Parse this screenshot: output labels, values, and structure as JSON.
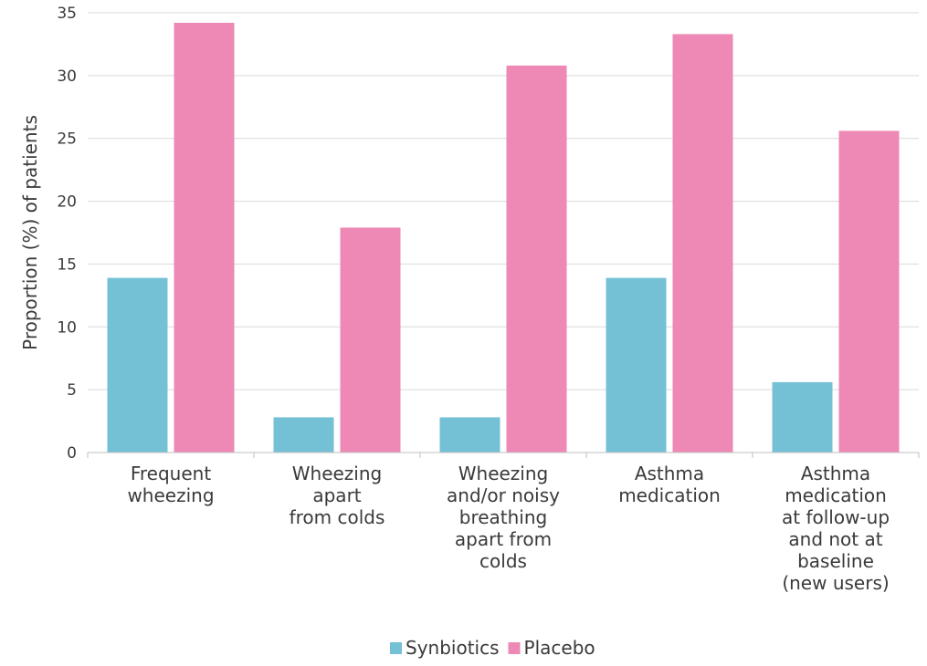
{
  "chart_data": {
    "type": "bar",
    "title": "",
    "xlabel": "",
    "ylabel": "Proportion (%) of patients",
    "ylim": [
      0,
      35
    ],
    "yticks": [
      0,
      5,
      10,
      15,
      20,
      25,
      30,
      35
    ],
    "grid": true,
    "legend_position": "bottom",
    "categories": [
      [
        "Frequent",
        "wheezing"
      ],
      [
        "Wheezing",
        "apart",
        "from colds"
      ],
      [
        "Wheezing",
        "and/or noisy",
        "breathing",
        "apart from",
        "colds"
      ],
      [
        "Asthma",
        "medication"
      ],
      [
        "Asthma",
        "medication",
        "at follow-up",
        "and not at",
        "baseline",
        "(new users)"
      ]
    ],
    "series": [
      {
        "name": "Synbiotics",
        "color": "#74C0D5",
        "values": [
          13.9,
          2.8,
          2.8,
          13.9,
          5.6
        ]
      },
      {
        "name": "Placebo",
        "color": "#EE88B4",
        "values": [
          34.2,
          17.9,
          30.8,
          33.3,
          25.6
        ]
      }
    ]
  }
}
